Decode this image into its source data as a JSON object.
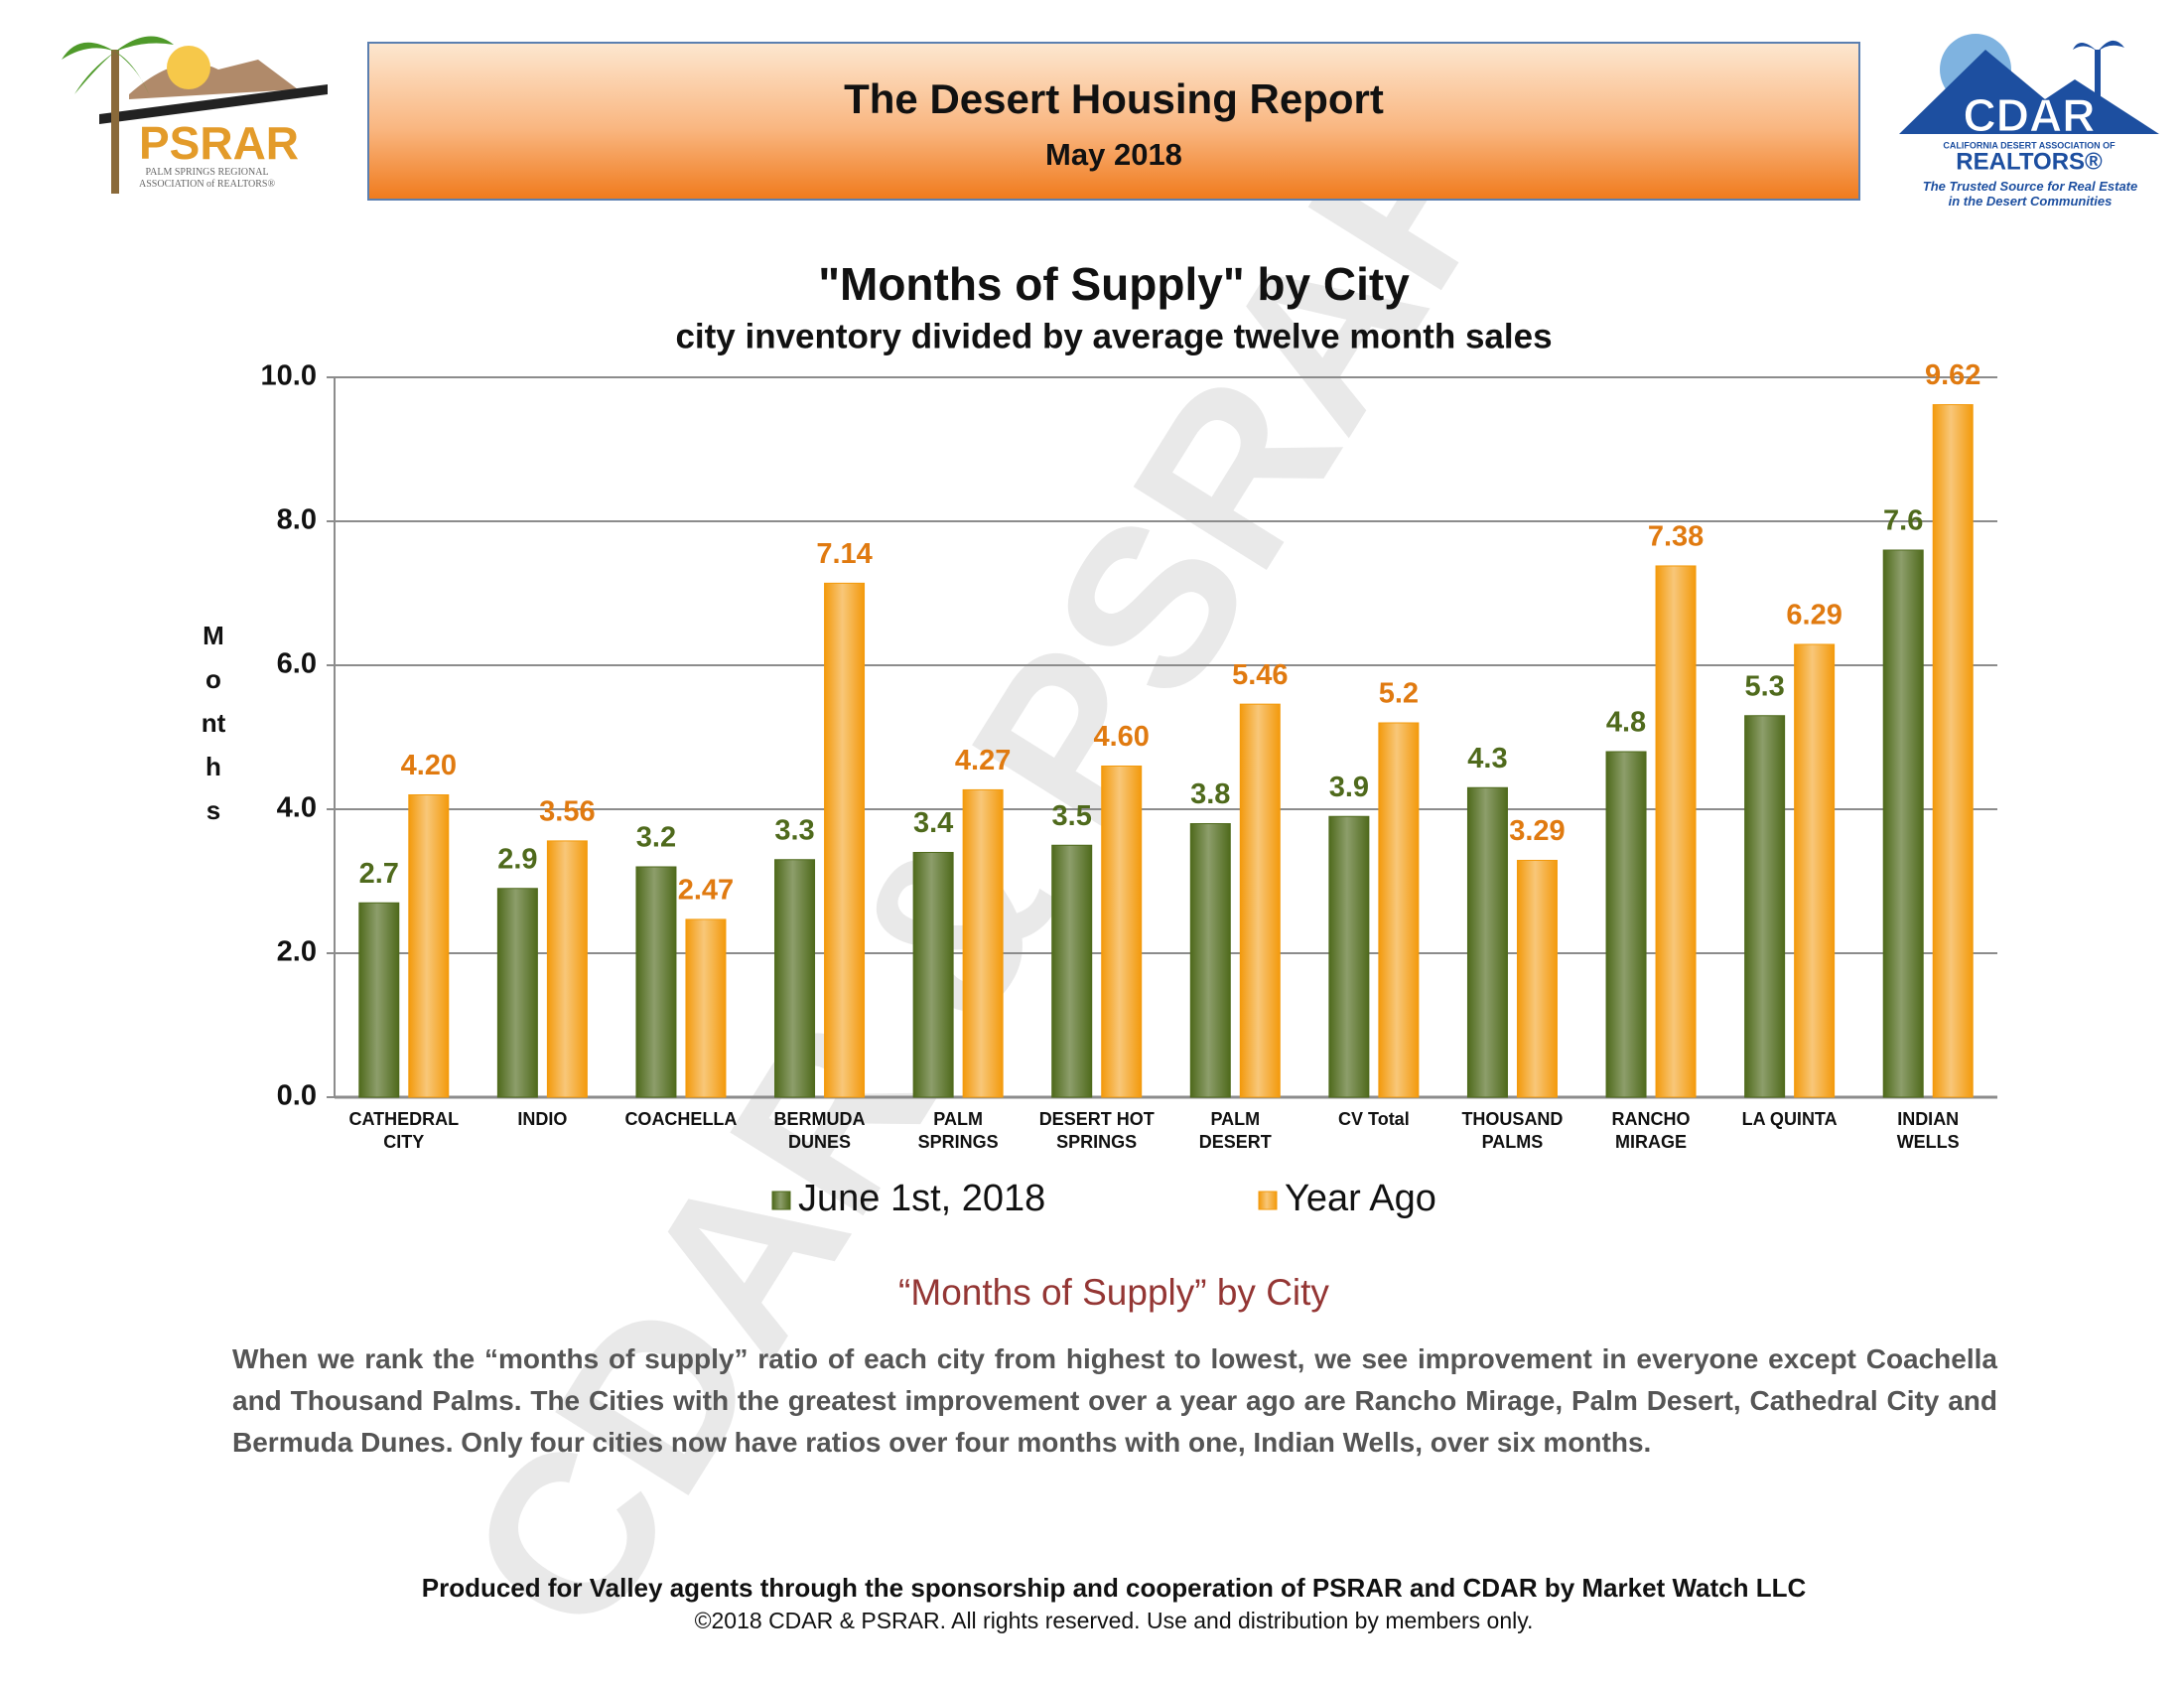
{
  "header": {
    "title": "The Desert Housing Report",
    "subtitle": "May 2018"
  },
  "logo_left": {
    "name": "PSRAR",
    "tagline": "PALM SPRINGS REGIONAL\nASSOCIATION of REALTORS®"
  },
  "logo_right": {
    "name": "CDAR",
    "org": "CALIFORNIA DESERT ASSOCIATION OF",
    "org2": "REALTORS®",
    "tagline": "The Trusted Source for Real Estate\nin the Desert Communities"
  },
  "watermark": "CDAR & PSRAR",
  "chart_data": {
    "type": "bar",
    "title": "\"Months of Supply\" by City",
    "subtitle": "city inventory divided by average twelve month sales",
    "y_label": "Months",
    "categories": [
      "CATHEDRAL\nCITY",
      "INDIO",
      "COACHELLA",
      "BERMUDA\nDUNES",
      "PALM\nSPRINGS",
      "DESERT HOT\nSPRINGS",
      "PALM\nDESERT",
      "CV Total",
      "THOUSAND\nPALMS",
      "RANCHO\nMIRAGE",
      "LA QUINTA",
      "INDIAN\nWELLS"
    ],
    "series": [
      {
        "name": "June 1st, 2018",
        "color": "#4f6a1c",
        "values": [
          2.7,
          2.9,
          3.2,
          3.3,
          3.4,
          3.5,
          3.8,
          3.9,
          4.3,
          4.8,
          5.3,
          7.6
        ]
      },
      {
        "name": "Year Ago",
        "color": "#f39a0c",
        "values": [
          4.2,
          3.56,
          2.47,
          7.14,
          4.27,
          4.6,
          5.46,
          5.2,
          3.29,
          7.38,
          6.29,
          9.62
        ],
        "value_labels": [
          "4.20",
          "3.56",
          "2.47",
          "7.14",
          "4.27",
          "4.60",
          "5.46",
          "5.2",
          "3.29",
          "7.38",
          "6.29",
          "9.62"
        ]
      }
    ],
    "ylim": [
      0,
      10
    ],
    "yticks": [
      {
        "value": 0,
        "label": "0.0"
      },
      {
        "value": 2,
        "label": "2.0"
      },
      {
        "value": 4,
        "label": "4.0"
      },
      {
        "value": 6,
        "label": "6.0"
      },
      {
        "value": 8,
        "label": "8.0"
      },
      {
        "value": 10,
        "label": "10.0"
      }
    ],
    "grid": true,
    "legend": "bottom"
  },
  "section": {
    "heading": "“Months of Supply” by City",
    "paragraph": "When we rank the “months of supply” ratio of each city from highest to lowest, we see improvement in everyone except Coachella and Thousand Palms. The Cities with the greatest improvement over a year ago are Rancho Mirage, Palm Desert, Cathedral City and Bermuda Dunes. Only four cities now have ratios over four months with one, Indian Wells, over six months."
  },
  "footer": {
    "line1": "Produced for Valley agents through the sponsorship and cooperation of PSRAR and CDAR by Market Watch LLC",
    "line2": "©2018 CDAR & PSRAR.  All rights reserved.  Use and distribution by members only."
  }
}
